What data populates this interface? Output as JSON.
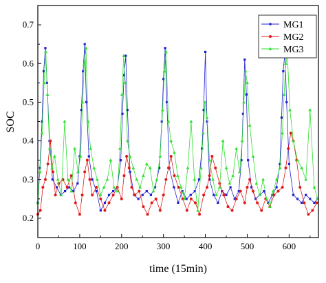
{
  "chart_data": {
    "type": "line",
    "xlabel": "time (15min)",
    "ylabel": "SOC",
    "xlim": [
      0,
      670
    ],
    "ylim": [
      0.15,
      0.75
    ],
    "x_ticks": [
      0,
      100,
      200,
      300,
      400,
      500,
      600
    ],
    "y_ticks": [
      0.2,
      0.3,
      0.4,
      0.5,
      0.6,
      0.7
    ],
    "x_tick_labels": [
      "0",
      "100",
      "200",
      "300",
      "400",
      "500",
      "600"
    ],
    "y_tick_labels": [
      "0.2",
      "0.3",
      "0.4",
      "0.5",
      "0.6",
      "0.7"
    ],
    "grid": false,
    "legend_position": "top-right",
    "series": [
      {
        "name": "MG1",
        "color": "#1f1fd0",
        "marker": "square",
        "x": [
          0,
          5,
          10,
          14,
          18,
          22,
          28,
          35,
          45,
          55,
          65,
          75,
          85,
          95,
          100,
          104,
          108,
          112,
          116,
          122,
          130,
          140,
          150,
          160,
          170,
          180,
          190,
          198,
          202,
          206,
          210,
          214,
          220,
          230,
          240,
          250,
          260,
          270,
          280,
          290,
          296,
          300,
          304,
          308,
          314,
          325,
          335,
          345,
          355,
          365,
          375,
          385,
          392,
          396,
          400,
          404,
          410,
          420,
          430,
          440,
          450,
          460,
          470,
          480,
          486,
          490,
          494,
          498,
          502,
          510,
          520,
          530,
          540,
          550,
          560,
          570,
          578,
          582,
          586,
          590,
          594,
          600,
          610,
          620,
          630,
          640,
          650,
          660,
          668
        ],
        "y": [
          0.24,
          0.33,
          0.45,
          0.58,
          0.64,
          0.55,
          0.4,
          0.3,
          0.28,
          0.26,
          0.27,
          0.28,
          0.27,
          0.29,
          0.36,
          0.48,
          0.58,
          0.65,
          0.5,
          0.36,
          0.3,
          0.27,
          0.22,
          0.24,
          0.26,
          0.27,
          0.28,
          0.35,
          0.47,
          0.57,
          0.62,
          0.48,
          0.32,
          0.26,
          0.25,
          0.26,
          0.27,
          0.26,
          0.28,
          0.33,
          0.45,
          0.56,
          0.64,
          0.5,
          0.33,
          0.28,
          0.24,
          0.27,
          0.25,
          0.26,
          0.27,
          0.3,
          0.38,
          0.48,
          0.63,
          0.45,
          0.3,
          0.26,
          0.24,
          0.27,
          0.26,
          0.28,
          0.25,
          0.27,
          0.35,
          0.47,
          0.61,
          0.52,
          0.35,
          0.28,
          0.25,
          0.26,
          0.27,
          0.24,
          0.26,
          0.28,
          0.34,
          0.46,
          0.58,
          0.63,
          0.5,
          0.34,
          0.26,
          0.25,
          0.24,
          0.26,
          0.25,
          0.24,
          0.25
        ]
      },
      {
        "name": "MG2",
        "color": "#e01818",
        "marker": "circle",
        "x": [
          0,
          6,
          12,
          18,
          24,
          30,
          36,
          42,
          50,
          60,
          70,
          80,
          90,
          100,
          106,
          112,
          118,
          124,
          130,
          140,
          150,
          160,
          170,
          180,
          190,
          200,
          206,
          212,
          218,
          224,
          232,
          242,
          252,
          262,
          272,
          282,
          292,
          300,
          306,
          312,
          318,
          326,
          336,
          346,
          356,
          366,
          376,
          386,
          396,
          404,
          410,
          416,
          424,
          434,
          444,
          454,
          464,
          474,
          484,
          494,
          500,
          506,
          514,
          524,
          534,
          544,
          554,
          564,
          574,
          584,
          592,
          598,
          604,
          610,
          618,
          626,
          636,
          646,
          656,
          666
        ],
        "y": [
          0.21,
          0.22,
          0.28,
          0.3,
          0.34,
          0.4,
          0.32,
          0.26,
          0.29,
          0.3,
          0.28,
          0.31,
          0.24,
          0.21,
          0.26,
          0.32,
          0.35,
          0.3,
          0.26,
          0.28,
          0.25,
          0.22,
          0.24,
          0.26,
          0.28,
          0.25,
          0.31,
          0.36,
          0.33,
          0.28,
          0.26,
          0.27,
          0.23,
          0.21,
          0.24,
          0.25,
          0.22,
          0.26,
          0.3,
          0.33,
          0.36,
          0.31,
          0.28,
          0.25,
          0.22,
          0.25,
          0.24,
          0.21,
          0.26,
          0.28,
          0.31,
          0.36,
          0.33,
          0.29,
          0.26,
          0.23,
          0.22,
          0.25,
          0.27,
          0.24,
          0.28,
          0.3,
          0.27,
          0.24,
          0.22,
          0.25,
          0.23,
          0.26,
          0.27,
          0.28,
          0.33,
          0.38,
          0.42,
          0.4,
          0.35,
          0.28,
          0.24,
          0.21,
          0.22,
          0.24
        ]
      },
      {
        "name": "MG3",
        "color": "#2ee02e",
        "marker": "triangle",
        "x": [
          0,
          5,
          10,
          15,
          19,
          23,
          28,
          34,
          40,
          48,
          56,
          64,
          72,
          80,
          88,
          96,
          102,
          107,
          111,
          115,
          120,
          126,
          134,
          142,
          150,
          158,
          166,
          174,
          182,
          190,
          196,
          201,
          205,
          209,
          214,
          220,
          228,
          236,
          244,
          252,
          260,
          268,
          276,
          284,
          292,
          298,
          302,
          306,
          312,
          318,
          326,
          334,
          342,
          350,
          358,
          366,
          374,
          382,
          390,
          395,
          399,
          404,
          410,
          418,
          426,
          434,
          442,
          450,
          458,
          466,
          474,
          482,
          488,
          492,
          496,
          500,
          506,
          514,
          522,
          530,
          538,
          546,
          554,
          562,
          570,
          578,
          584,
          588,
          592,
          596,
          602,
          610,
          620,
          630,
          640,
          650,
          660,
          668
        ],
        "y": [
          0.24,
          0.32,
          0.42,
          0.55,
          0.63,
          0.52,
          0.38,
          0.33,
          0.36,
          0.3,
          0.26,
          0.45,
          0.3,
          0.27,
          0.38,
          0.32,
          0.36,
          0.5,
          0.6,
          0.64,
          0.45,
          0.38,
          0.33,
          0.3,
          0.26,
          0.28,
          0.3,
          0.35,
          0.28,
          0.27,
          0.38,
          0.52,
          0.62,
          0.55,
          0.4,
          0.36,
          0.33,
          0.3,
          0.28,
          0.31,
          0.34,
          0.33,
          0.27,
          0.3,
          0.36,
          0.48,
          0.58,
          0.63,
          0.45,
          0.4,
          0.37,
          0.31,
          0.28,
          0.25,
          0.33,
          0.45,
          0.3,
          0.22,
          0.33,
          0.42,
          0.5,
          0.46,
          0.35,
          0.3,
          0.26,
          0.28,
          0.4,
          0.33,
          0.29,
          0.31,
          0.38,
          0.32,
          0.4,
          0.5,
          0.58,
          0.55,
          0.44,
          0.36,
          0.29,
          0.26,
          0.3,
          0.25,
          0.23,
          0.27,
          0.3,
          0.33,
          0.42,
          0.52,
          0.6,
          0.62,
          0.48,
          0.4,
          0.35,
          0.33,
          0.3,
          0.48,
          0.28,
          0.25
        ]
      }
    ]
  }
}
